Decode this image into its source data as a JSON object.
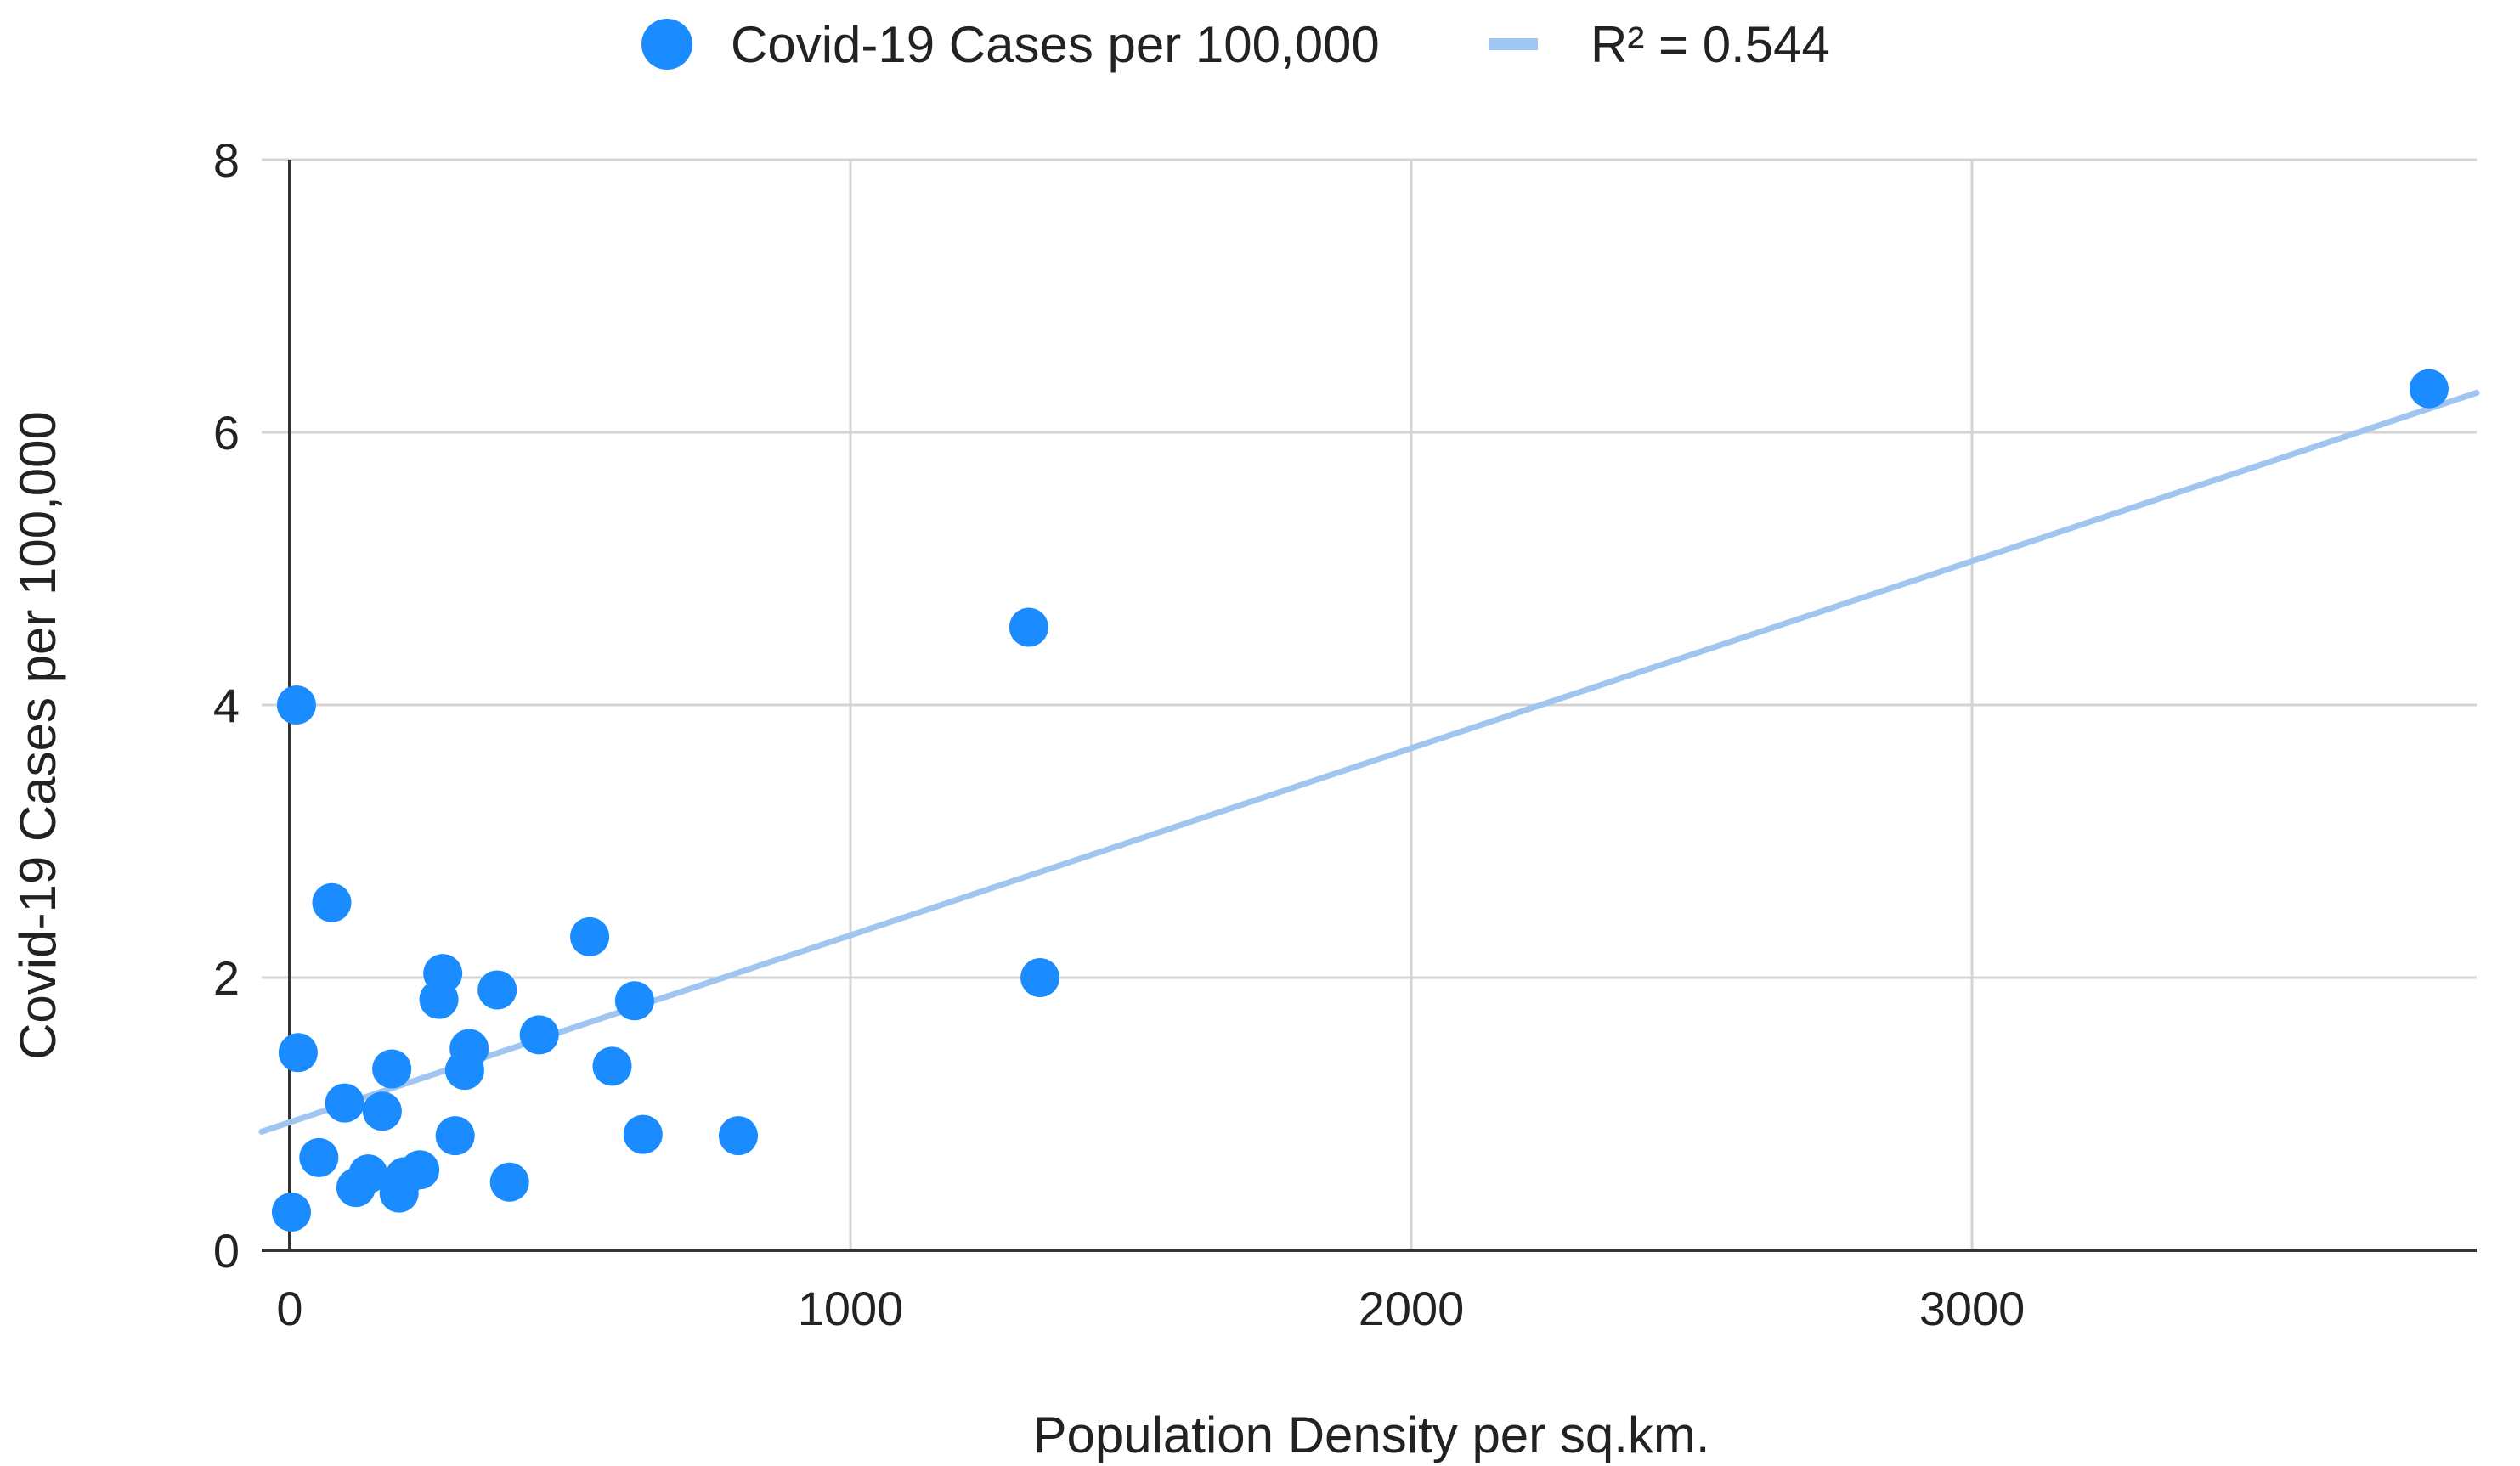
{
  "chart_data": {
    "type": "scatter",
    "xlabel": "Population Density per sq.km.",
    "ylabel": "Covid-19 Cases per 100,000",
    "xlim": [
      -50,
      3900
    ],
    "ylim": [
      0,
      8
    ],
    "x_ticks": [
      0,
      1000,
      2000,
      3000
    ],
    "y_ticks": [
      0,
      2,
      4,
      6,
      8
    ],
    "grid": true,
    "legend_position": "top-center",
    "series": [
      {
        "name": "Covid-19 Cases per 100,000",
        "kind": "scatter",
        "color": "#1a8cff",
        "points": [
          {
            "x": 3,
            "y": 0.28
          },
          {
            "x": 12,
            "y": 4.0
          },
          {
            "x": 15,
            "y": 1.45
          },
          {
            "x": 52,
            "y": 0.68
          },
          {
            "x": 75,
            "y": 2.55
          },
          {
            "x": 98,
            "y": 1.08
          },
          {
            "x": 118,
            "y": 0.46
          },
          {
            "x": 140,
            "y": 0.56
          },
          {
            "x": 165,
            "y": 1.02
          },
          {
            "x": 182,
            "y": 1.33
          },
          {
            "x": 195,
            "y": 0.42
          },
          {
            "x": 205,
            "y": 0.54
          },
          {
            "x": 232,
            "y": 0.59
          },
          {
            "x": 266,
            "y": 1.84
          },
          {
            "x": 273,
            "y": 2.03
          },
          {
            "x": 295,
            "y": 0.84
          },
          {
            "x": 312,
            "y": 1.32
          },
          {
            "x": 320,
            "y": 1.48
          },
          {
            "x": 370,
            "y": 1.91
          },
          {
            "x": 392,
            "y": 0.5
          },
          {
            "x": 445,
            "y": 1.58
          },
          {
            "x": 535,
            "y": 2.3
          },
          {
            "x": 575,
            "y": 1.35
          },
          {
            "x": 615,
            "y": 1.83
          },
          {
            "x": 630,
            "y": 0.85
          },
          {
            "x": 800,
            "y": 0.84
          },
          {
            "x": 1318,
            "y": 4.57
          },
          {
            "x": 1338,
            "y": 2.0
          },
          {
            "x": 3815,
            "y": 6.32
          }
        ]
      },
      {
        "name": "R² = 0.544",
        "kind": "trendline",
        "color": "#9fc5f0",
        "line": {
          "x_start": -50,
          "y_start": 0.87,
          "x_end": 3900,
          "y_end": 6.29
        }
      }
    ]
  }
}
